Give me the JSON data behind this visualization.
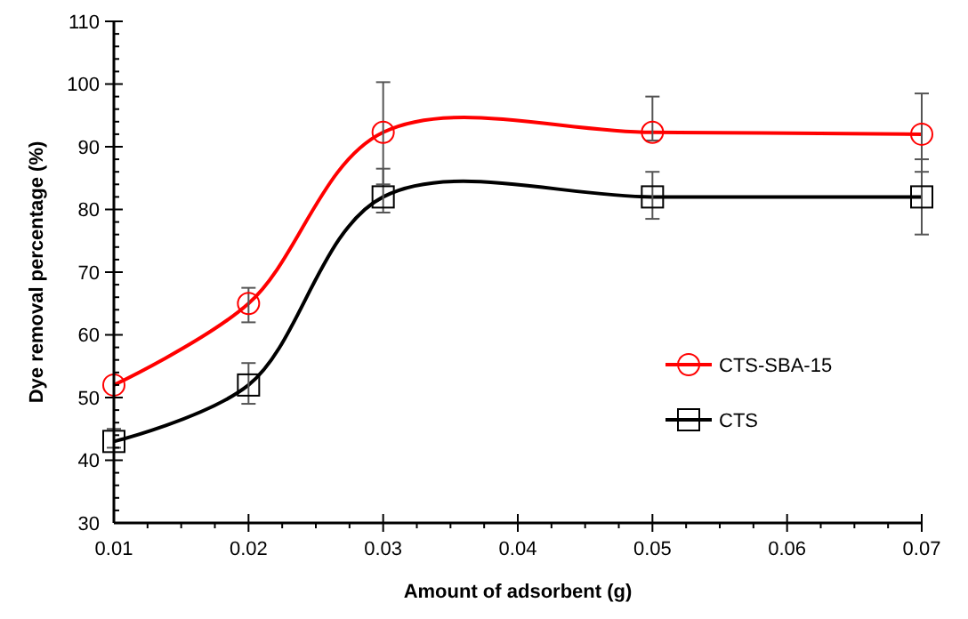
{
  "chart_data": {
    "type": "line",
    "xlabel": "Amount of adsorbent (g)",
    "ylabel": "Dye removal percentage (%)",
    "x": [
      0.01,
      0.02,
      0.03,
      0.05,
      0.07
    ],
    "series": [
      {
        "name": "CTS-SBA-15",
        "color": "#ff0000",
        "marker": "circle",
        "values": [
          52,
          65,
          92.3,
          92.3,
          92
        ],
        "errors": [
          null,
          [
            62,
            67.5
          ],
          [
            84,
            100.3
          ],
          [
            91,
            98
          ],
          [
            86,
            98.5
          ]
        ]
      },
      {
        "name": "CTS",
        "color": "#000000",
        "marker": "square",
        "values": [
          43,
          52,
          82,
          82,
          82
        ],
        "errors": [
          [
            42,
            45
          ],
          [
            49,
            55.5
          ],
          [
            79.5,
            86.5
          ],
          [
            78.5,
            86
          ],
          [
            76,
            88
          ]
        ]
      }
    ],
    "xlim": [
      0.01,
      0.07
    ],
    "xticks": [
      {
        "value": 0.01,
        "label": "0.01"
      },
      {
        "value": 0.02,
        "label": "0.02"
      },
      {
        "value": 0.03,
        "label": "0.03"
      },
      {
        "value": 0.04,
        "label": "0.04"
      },
      {
        "value": 0.05,
        "label": "0.05"
      },
      {
        "value": 0.06,
        "label": "0.06"
      },
      {
        "value": 0.07,
        "label": "0.07"
      }
    ],
    "ylim": [
      30,
      110
    ],
    "yticks": [
      30,
      40,
      50,
      60,
      70,
      80,
      90,
      100,
      110
    ],
    "grid": false,
    "legend": "right",
    "line_style": "solid"
  }
}
